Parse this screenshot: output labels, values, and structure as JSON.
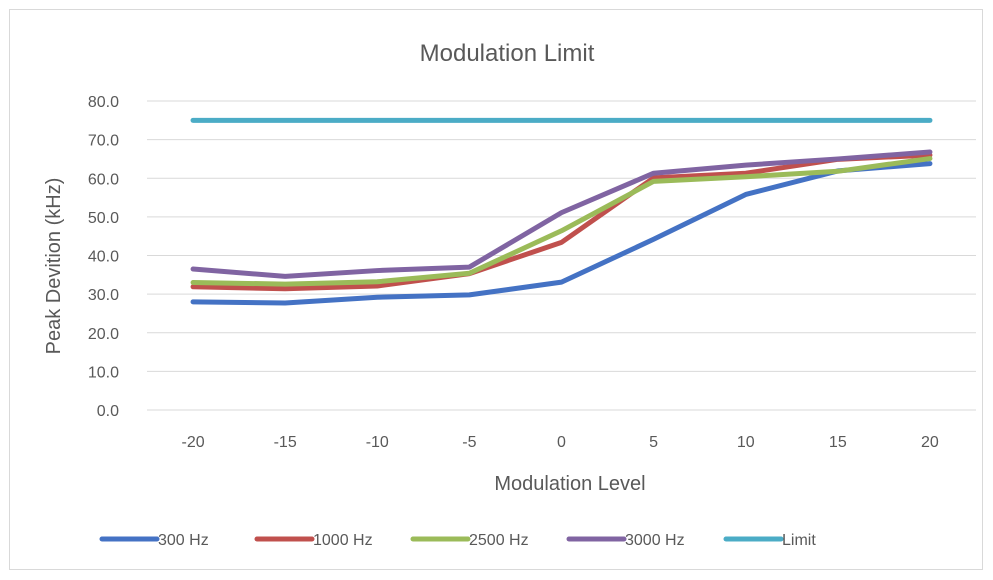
{
  "chart_data": {
    "type": "line",
    "title": "Modulation Limit",
    "xlabel": "Modulation Level",
    "ylabel": "Peak Devition (kHz)",
    "categories": [
      "-20",
      "-15",
      "-10",
      "-5",
      "0",
      "5",
      "10",
      "15",
      "20"
    ],
    "ylim": [
      0,
      80
    ],
    "yticks": [
      "0.0",
      "10.0",
      "20.0",
      "30.0",
      "40.0",
      "50.0",
      "60.0",
      "70.0",
      "80.0"
    ],
    "grid": true,
    "legend_position": "bottom",
    "series": [
      {
        "name": "300 Hz",
        "color": "#4472c4",
        "values": [
          28.0,
          27.7,
          29.2,
          29.8,
          33.1,
          44.2,
          55.8,
          61.9,
          63.8
        ]
      },
      {
        "name": "1000 Hz",
        "color": "#c0504d",
        "values": [
          31.9,
          31.4,
          32.1,
          35.3,
          43.4,
          60.1,
          61.3,
          64.9,
          66.0
        ]
      },
      {
        "name": "2500 Hz",
        "color": "#9bbb59",
        "values": [
          33.0,
          32.6,
          33.2,
          35.4,
          46.4,
          59.2,
          60.4,
          61.8,
          65.1
        ]
      },
      {
        "name": "3000 Hz",
        "color": "#8064a2",
        "values": [
          36.5,
          34.6,
          36.1,
          37.0,
          51.1,
          61.3,
          63.4,
          65.0,
          66.8
        ]
      },
      {
        "name": "Limit",
        "color": "#4bacc6",
        "values": [
          75.0,
          75.0,
          75.0,
          75.0,
          75.0,
          75.0,
          75.0,
          75.0,
          75.0
        ]
      }
    ]
  }
}
